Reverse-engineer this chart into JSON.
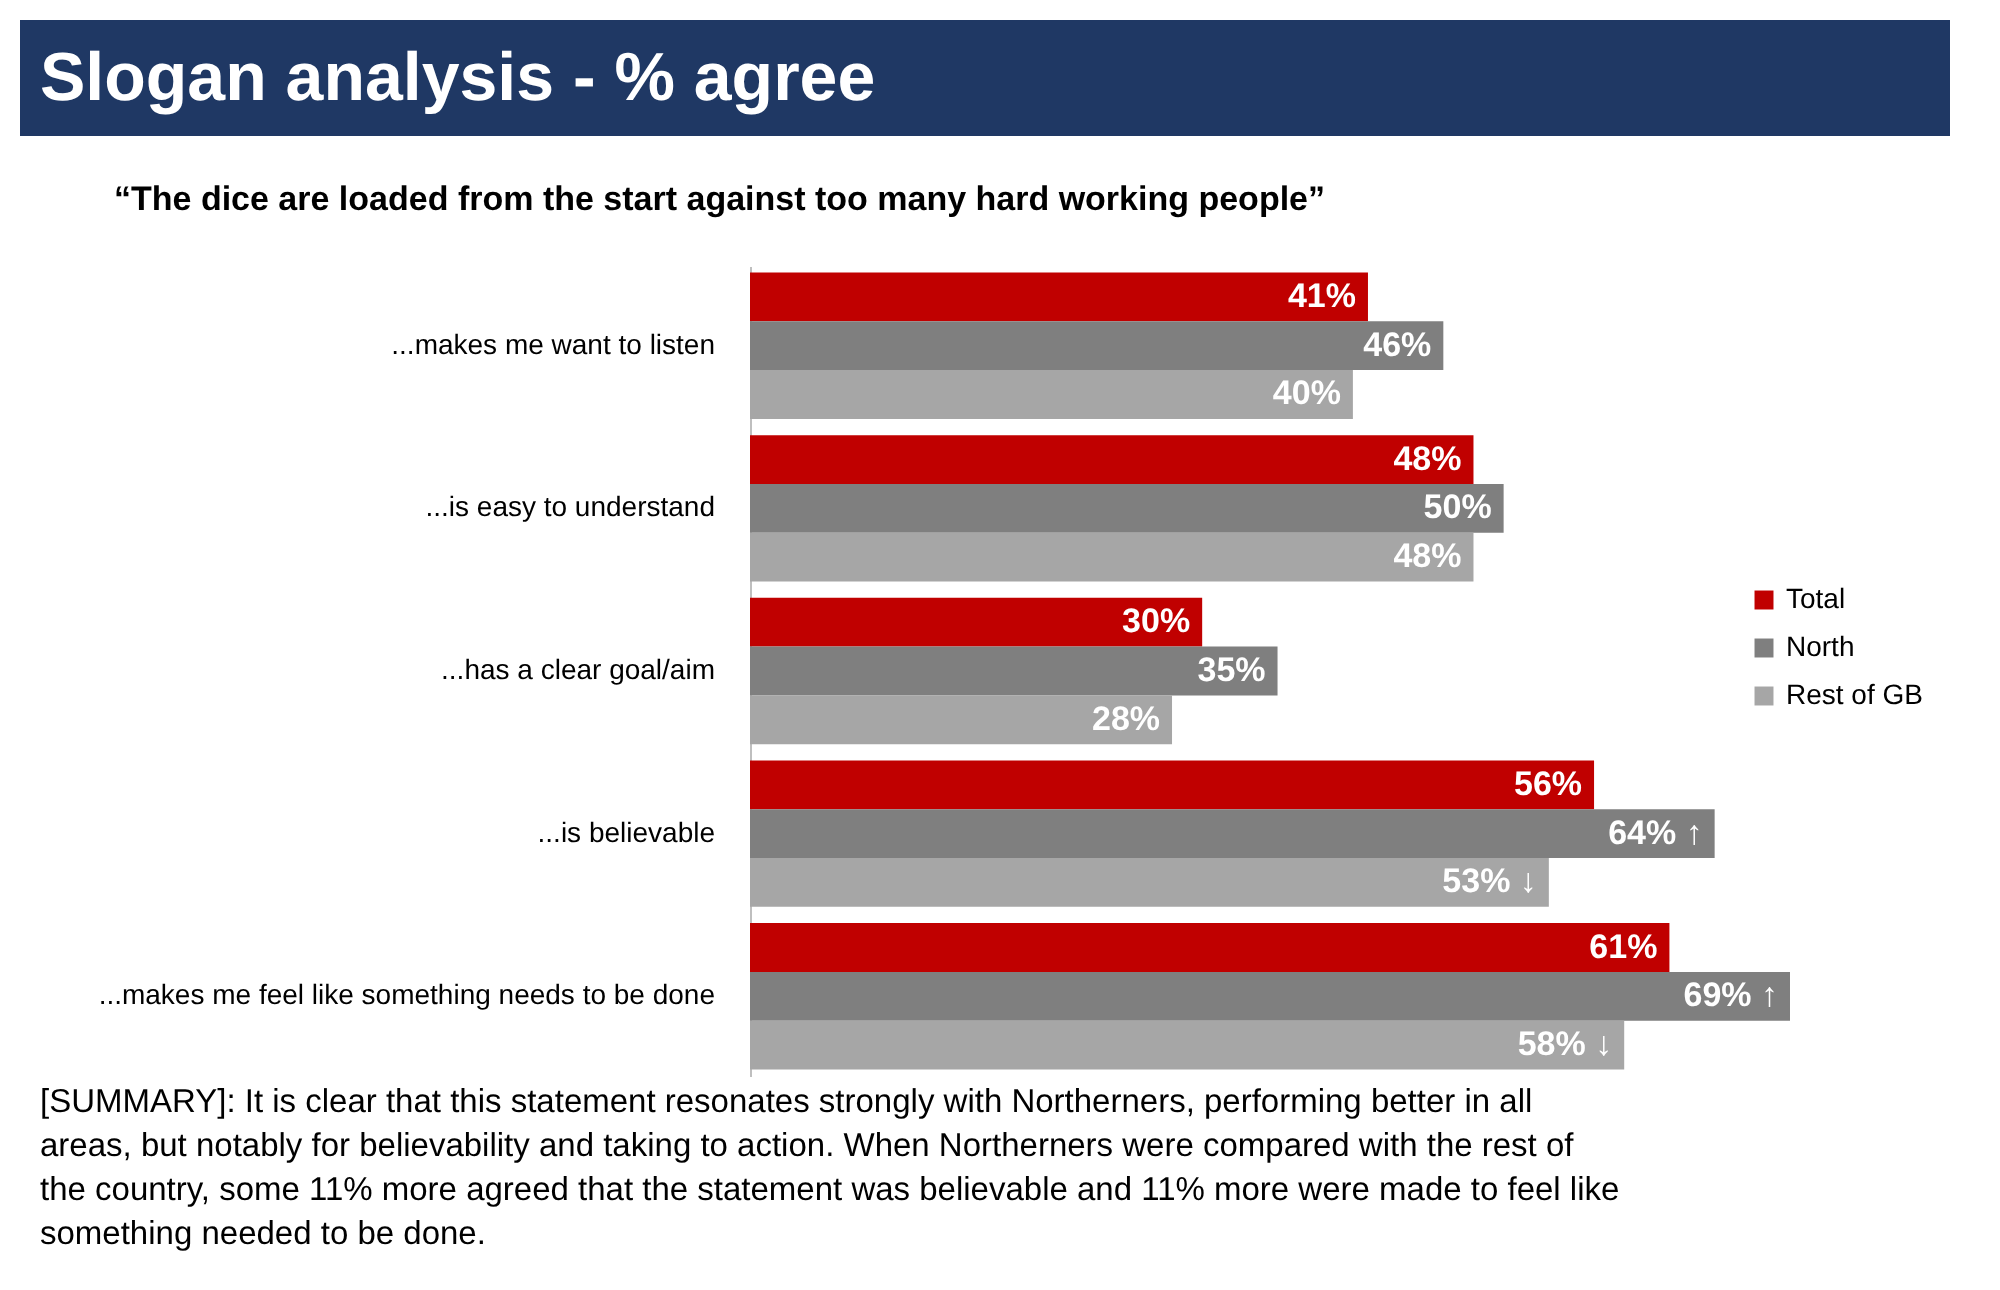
{
  "chart_data": {
    "type": "bar",
    "orientation": "horizontal",
    "title": "Slogan analysis - % agree",
    "subtitle": "“The dice are loaded from the start against too many hard working people”",
    "categories": [
      "...makes me want to listen",
      "...is easy to understand",
      "...has a clear goal/aim",
      "...is believable",
      "...makes me feel like something needs to be done"
    ],
    "series": [
      {
        "name": "Total",
        "color": "#c00000",
        "values": [
          41,
          48,
          30,
          56,
          61
        ],
        "value_labels": [
          "41%",
          "48%",
          "30%",
          "56%",
          "61%"
        ]
      },
      {
        "name": "North",
        "color": "#7f7f7f",
        "values": [
          46,
          50,
          35,
          64,
          69
        ],
        "value_labels": [
          "46%",
          "50%",
          "35%",
          "64% ↑",
          "69% ↑"
        ]
      },
      {
        "name": "Rest of GB",
        "color": "#a6a6a6",
        "values": [
          40,
          48,
          28,
          53,
          58
        ],
        "value_labels": [
          "40%",
          "48%",
          "28%",
          "53% ↓",
          "58% ↓"
        ]
      }
    ],
    "legend": "right",
    "grid": false,
    "annotations": [
      "[SUMMARY]: It is clear that this statement resonates strongly with Northerners, performing better in all areas, but notably for believability and taking to action. When Northerners were compared with the rest of the country, some 11% more agreed that the statement was believable and 11% more were made to feel like something needed to be done."
    ]
  }
}
